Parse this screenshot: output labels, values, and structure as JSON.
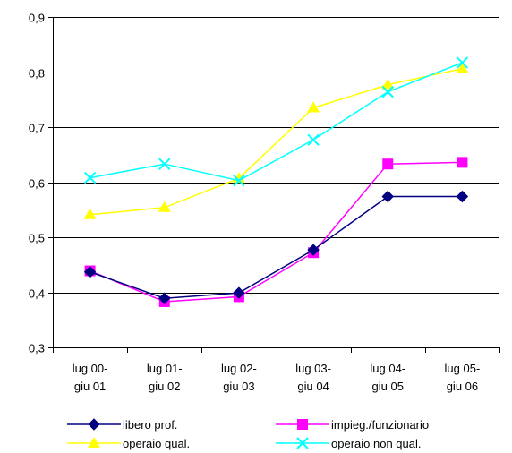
{
  "chart_data": {
    "type": "line",
    "categories": [
      [
        "lug 00-",
        "giu 01"
      ],
      [
        "lug 01-",
        "giu 02"
      ],
      [
        "lug 02-",
        "giu 03"
      ],
      [
        "lug 03-",
        "giu 04"
      ],
      [
        "lug 04-",
        "giu 05"
      ],
      [
        "lug 05-",
        "giu 06"
      ]
    ],
    "ylim": [
      0.3,
      0.9
    ],
    "yticks": [
      0.3,
      0.4,
      0.5,
      0.6,
      0.7,
      0.8,
      0.9
    ],
    "ytick_labels": [
      "0,3",
      "0,4",
      "0,5",
      "0,6",
      "0,7",
      "0,8",
      "0,9"
    ],
    "grid": "horizontal",
    "legend_position": "bottom",
    "series": [
      {
        "name": "libero prof.",
        "color": "#000080",
        "marker": "diamond",
        "values": [
          0.437,
          0.389,
          0.399,
          0.477,
          0.574,
          0.574
        ]
      },
      {
        "name": "impieg./funzionario",
        "color": "#ff00ff",
        "marker": "square",
        "values": [
          0.439,
          0.383,
          0.392,
          0.472,
          0.633,
          0.636
        ]
      },
      {
        "name": "operaio qual.",
        "color": "#ffff00",
        "marker": "triangle",
        "values": [
          0.541,
          0.554,
          0.607,
          0.735,
          0.777,
          0.806
        ]
      },
      {
        "name": "operaio non qual.",
        "color": "#00ffff",
        "marker": "x",
        "values": [
          0.608,
          0.633,
          0.603,
          0.677,
          0.764,
          0.817
        ]
      }
    ]
  }
}
